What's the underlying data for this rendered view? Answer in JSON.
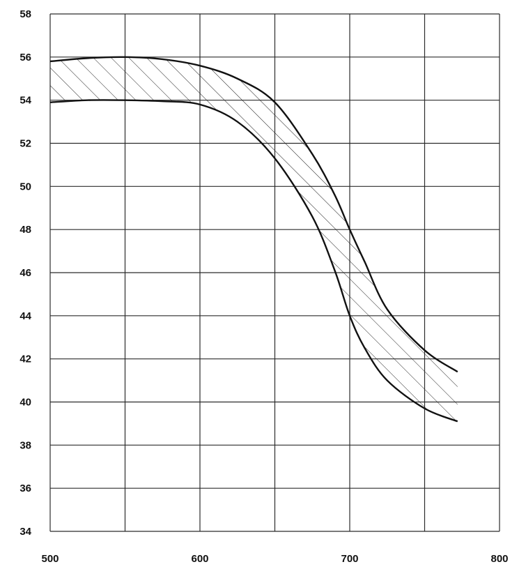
{
  "chart_data": {
    "type": "area",
    "title": "",
    "xlabel": "",
    "ylabel": "",
    "xlim": [
      500,
      800
    ],
    "ylim": [
      34,
      58
    ],
    "x_ticks": [
      500,
      600,
      700,
      800
    ],
    "x_tick_labels": [
      "500",
      "600",
      "700",
      "800"
    ],
    "x_minor_grid": [
      550,
      650,
      750
    ],
    "y_ticks": [
      34,
      36,
      38,
      40,
      42,
      44,
      46,
      48,
      50,
      52,
      54,
      56,
      58
    ],
    "y_tick_labels": [
      "34",
      "36",
      "38",
      "40",
      "42",
      "44",
      "46",
      "48",
      "50",
      "52",
      "54",
      "56",
      "58"
    ],
    "grid": true,
    "band": {
      "fill_pattern": "diagonal-hatch",
      "upper": {
        "x": [
          500,
          525,
          550,
          575,
          600,
          625,
          650,
          675,
          690,
          700,
          710,
          725,
          750,
          772
        ],
        "y": [
          55.8,
          55.95,
          56.0,
          55.9,
          55.6,
          55.0,
          53.9,
          51.5,
          49.6,
          48.0,
          46.5,
          44.3,
          42.4,
          41.4
        ]
      },
      "lower": {
        "x": [
          500,
          525,
          550,
          575,
          600,
          625,
          650,
          675,
          690,
          700,
          710,
          725,
          750,
          772
        ],
        "y": [
          53.9,
          54.0,
          54.0,
          53.95,
          53.8,
          53.0,
          51.3,
          48.6,
          46.1,
          44.0,
          42.5,
          41.0,
          39.7,
          39.1
        ]
      }
    },
    "colors": {
      "line": "#111111",
      "grid": "#2b2b2b",
      "hatch": "#222222"
    }
  }
}
